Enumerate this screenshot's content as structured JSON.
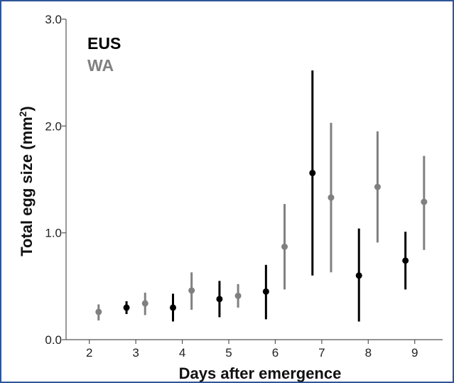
{
  "chart_data": {
    "type": "scatter",
    "title": "",
    "xlabel": "Days after emergence",
    "ylabel": "Total egg size (mm",
    "ylabel_superscript": "2",
    "ylabel_suffix": ")",
    "xlim": [
      1.5,
      9.6
    ],
    "ylim": [
      0.0,
      3.0
    ],
    "x_ticks": [
      "2",
      "3",
      "4",
      "5",
      "6",
      "7",
      "8",
      "9"
    ],
    "y_ticks": [
      "0.0",
      "1.0",
      "2.0",
      "3.0"
    ],
    "grid": false,
    "legend_position": "top-left",
    "error_bars": true,
    "series": [
      {
        "name": "EUS",
        "color": "#000000",
        "points": [
          {
            "x": 2.8,
            "y": 0.3,
            "low": 0.24,
            "high": 0.36
          },
          {
            "x": 3.8,
            "y": 0.3,
            "low": 0.17,
            "high": 0.43
          },
          {
            "x": 4.8,
            "y": 0.38,
            "low": 0.21,
            "high": 0.55
          },
          {
            "x": 5.8,
            "y": 0.45,
            "low": 0.19,
            "high": 0.7
          },
          {
            "x": 6.8,
            "y": 1.56,
            "low": 0.6,
            "high": 2.52
          },
          {
            "x": 7.8,
            "y": 0.6,
            "low": 0.17,
            "high": 1.04
          },
          {
            "x": 8.8,
            "y": 0.74,
            "low": 0.47,
            "high": 1.01
          }
        ]
      },
      {
        "name": "WA",
        "color": "#808080",
        "points": [
          {
            "x": 2.2,
            "y": 0.26,
            "low": 0.18,
            "high": 0.33
          },
          {
            "x": 3.2,
            "y": 0.34,
            "low": 0.23,
            "high": 0.44
          },
          {
            "x": 4.2,
            "y": 0.46,
            "low": 0.28,
            "high": 0.63
          },
          {
            "x": 5.2,
            "y": 0.41,
            "low": 0.3,
            "high": 0.52
          },
          {
            "x": 6.2,
            "y": 0.87,
            "low": 0.47,
            "high": 1.27
          },
          {
            "x": 7.2,
            "y": 1.33,
            "low": 0.63,
            "high": 2.03
          },
          {
            "x": 8.2,
            "y": 1.43,
            "low": 0.91,
            "high": 1.95
          },
          {
            "x": 9.2,
            "y": 1.29,
            "low": 0.84,
            "high": 1.72
          }
        ]
      }
    ]
  }
}
